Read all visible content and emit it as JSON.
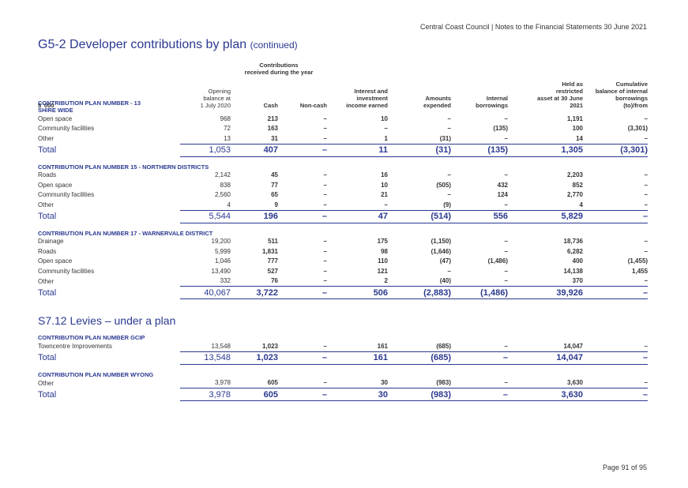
{
  "header": {
    "text": "Central Coast Council | Notes to the Financial Statements 30 June 2021"
  },
  "title": {
    "main": "G5-2 Developer contributions by plan",
    "cont": "(continued)"
  },
  "columns": {
    "unit": "$ '000",
    "opening": [
      "Opening",
      "balance at",
      "1 July 2020"
    ],
    "contrib_group": [
      "Contributions",
      "received during the year"
    ],
    "cash": "Cash",
    "noncash": "Non-cash",
    "interest": [
      "Interest and",
      "investment",
      "income earned"
    ],
    "expended": [
      "Amounts",
      "expended"
    ],
    "internal": [
      "Internal",
      "borrowings"
    ],
    "held": [
      "Held as",
      "restricted",
      "asset at 30 June",
      "2021"
    ],
    "cumulative": [
      "Cumulative",
      "balance of internal",
      "borrowings",
      "(to)/from"
    ]
  },
  "plans": [
    {
      "title": [
        "CONTRIBUTION PLAN NUMBER - 13",
        "SHIRE WIDE"
      ],
      "rows": [
        [
          "Open space",
          "968",
          "213",
          "–",
          "10",
          "–",
          "–",
          "1,191",
          "–"
        ],
        [
          "Community facilities",
          "72",
          "163",
          "–",
          "–",
          "–",
          "(135)",
          "100",
          "(3,301)"
        ],
        [
          "Other",
          "13",
          "31",
          "–",
          "1",
          "(31)",
          "–",
          "14",
          "–"
        ]
      ],
      "total": [
        "Total",
        "1,053",
        "407",
        "–",
        "11",
        "(31)",
        "(135)",
        "1,305",
        "(3,301)"
      ]
    },
    {
      "title": [
        "CONTRIBUTION PLAN NUMBER 15 - NORTHERN DISTRICTS"
      ],
      "rows": [
        [
          "Roads",
          "2,142",
          "45",
          "–",
          "16",
          "–",
          "–",
          "2,203",
          "–"
        ],
        [
          "Open space",
          "838",
          "77",
          "–",
          "10",
          "(505)",
          "432",
          "852",
          "–"
        ],
        [
          "Community facilities",
          "2,560",
          "65",
          "–",
          "21",
          "–",
          "124",
          "2,770",
          "–"
        ],
        [
          "Other",
          "4",
          "9",
          "–",
          "–",
          "(9)",
          "–",
          "4",
          "–"
        ]
      ],
      "total": [
        "Total",
        "5,544",
        "196",
        "–",
        "47",
        "(514)",
        "556",
        "5,829",
        "–"
      ]
    },
    {
      "title": [
        "CONTRIBUTION PLAN NUMBER 17 - WARNERVALE DISTRICT"
      ],
      "rows": [
        [
          "Drainage",
          "19,200",
          "511",
          "–",
          "175",
          "(1,150)",
          "–",
          "18,736",
          "–"
        ],
        [
          "Roads",
          "5,999",
          "1,831",
          "–",
          "98",
          "(1,646)",
          "–",
          "6,282",
          "–"
        ],
        [
          "Open space",
          "1,046",
          "777",
          "–",
          "110",
          "(47)",
          "(1,486)",
          "400",
          "(1,455)"
        ],
        [
          "Community facilities",
          "13,490",
          "527",
          "–",
          "121",
          "–",
          "–",
          "14,138",
          "1,455"
        ],
        [
          "Other",
          "332",
          "76",
          "–",
          "2",
          "(40)",
          "–",
          "370",
          "–"
        ]
      ],
      "total": [
        "Total",
        "40,067",
        "3,722",
        "–",
        "506",
        "(2,883)",
        "(1,486)",
        "39,926",
        "–"
      ]
    }
  ],
  "section2": {
    "title": "S7.12 Levies – under a plan",
    "plans": [
      {
        "title": [
          "CONTRIBUTION PLAN NUMBER GCIP"
        ],
        "rows": [
          [
            "Towncentre Improvements",
            "13,548",
            "1,023",
            "–",
            "161",
            "(685)",
            "–",
            "14,047",
            "–"
          ]
        ],
        "total": [
          "Total",
          "13,548",
          "1,023",
          "–",
          "161",
          "(685)",
          "–",
          "14,047",
          "–"
        ]
      },
      {
        "title": [
          "CONTRIBUTION PLAN NUMBER WYONG"
        ],
        "rows": [
          [
            "Other",
            "3,978",
            "605",
            "–",
            "30",
            "(983)",
            "–",
            "3,630",
            "–"
          ]
        ],
        "total": [
          "Total",
          "3,978",
          "605",
          "–",
          "30",
          "(983)",
          "–",
          "3,630",
          "–"
        ]
      }
    ]
  },
  "footer": {
    "text": "Page 91 of 95"
  }
}
